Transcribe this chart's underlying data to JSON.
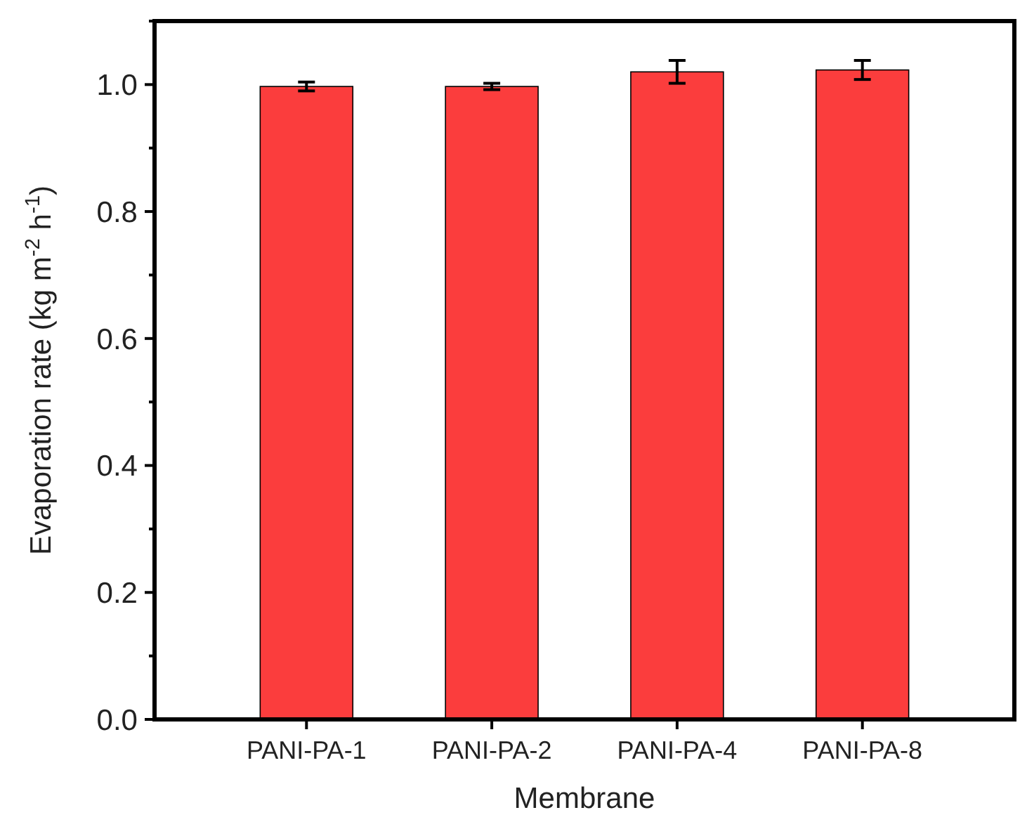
{
  "chart_data": {
    "type": "bar",
    "xlabel": "Membrane",
    "ylabel": "Evaporation rate (kg m$^{-2}$ h$^{-1}$)",
    "categories": [
      "PANI-PA-1",
      "PANI-PA-2",
      "PANI-PA-4",
      "PANI-PA-8"
    ],
    "values": [
      0.997,
      0.997,
      1.02,
      1.023
    ],
    "errors": [
      0.007,
      0.005,
      0.018,
      0.015
    ],
    "color": "#fb3d3d",
    "ylim": [
      0,
      1.1
    ],
    "yticks": [
      {
        "value": 0,
        "label": "0.0"
      },
      {
        "value": 0.1,
        "label": null
      },
      0.2,
      {
        "value": 0.3,
        "label": null
      },
      0.4,
      {
        "value": 0.5,
        "label": null
      },
      0.6,
      {
        "value": 0.7,
        "label": null
      },
      0.8,
      {
        "value": 0.9,
        "label": null
      },
      {
        "value": 1,
        "label": "1.0"
      },
      {
        "value": 1.1,
        "label": null
      }
    ],
    "grid": false
  }
}
